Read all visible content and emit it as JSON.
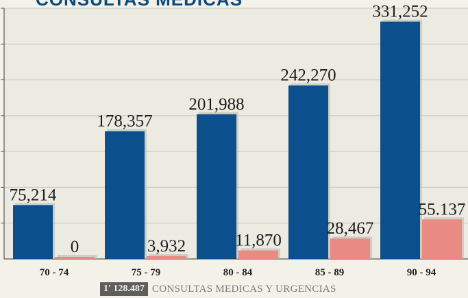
{
  "title": "CONSULTAS MEDICAS",
  "chart_data": {
    "type": "bar",
    "title": "CONSULTAS MEDICAS",
    "categories": [
      "70 - 74",
      "75 - 79",
      "80 - 84",
      "85 - 89",
      "90 - 94"
    ],
    "series": [
      {
        "values": [
          75214,
          178357,
          201988,
          242270,
          331252
        ],
        "labels": [
          "75,214",
          "178,357",
          "201,988",
          "242,270",
          "331,252"
        ],
        "color": "#0b4f8c"
      },
      {
        "values": [
          0,
          3932,
          11870,
          28467,
          55137
        ],
        "labels": [
          "0",
          "3,932",
          "11,870",
          "28,467",
          "55.137"
        ],
        "color": "#e98b83"
      }
    ],
    "ylim": [
      0,
      350000
    ],
    "grid": true,
    "legend": "none"
  },
  "footer": {
    "total": "1' 128.487",
    "label": "CONSULTAS MEDICAS Y URGENCIAS"
  }
}
